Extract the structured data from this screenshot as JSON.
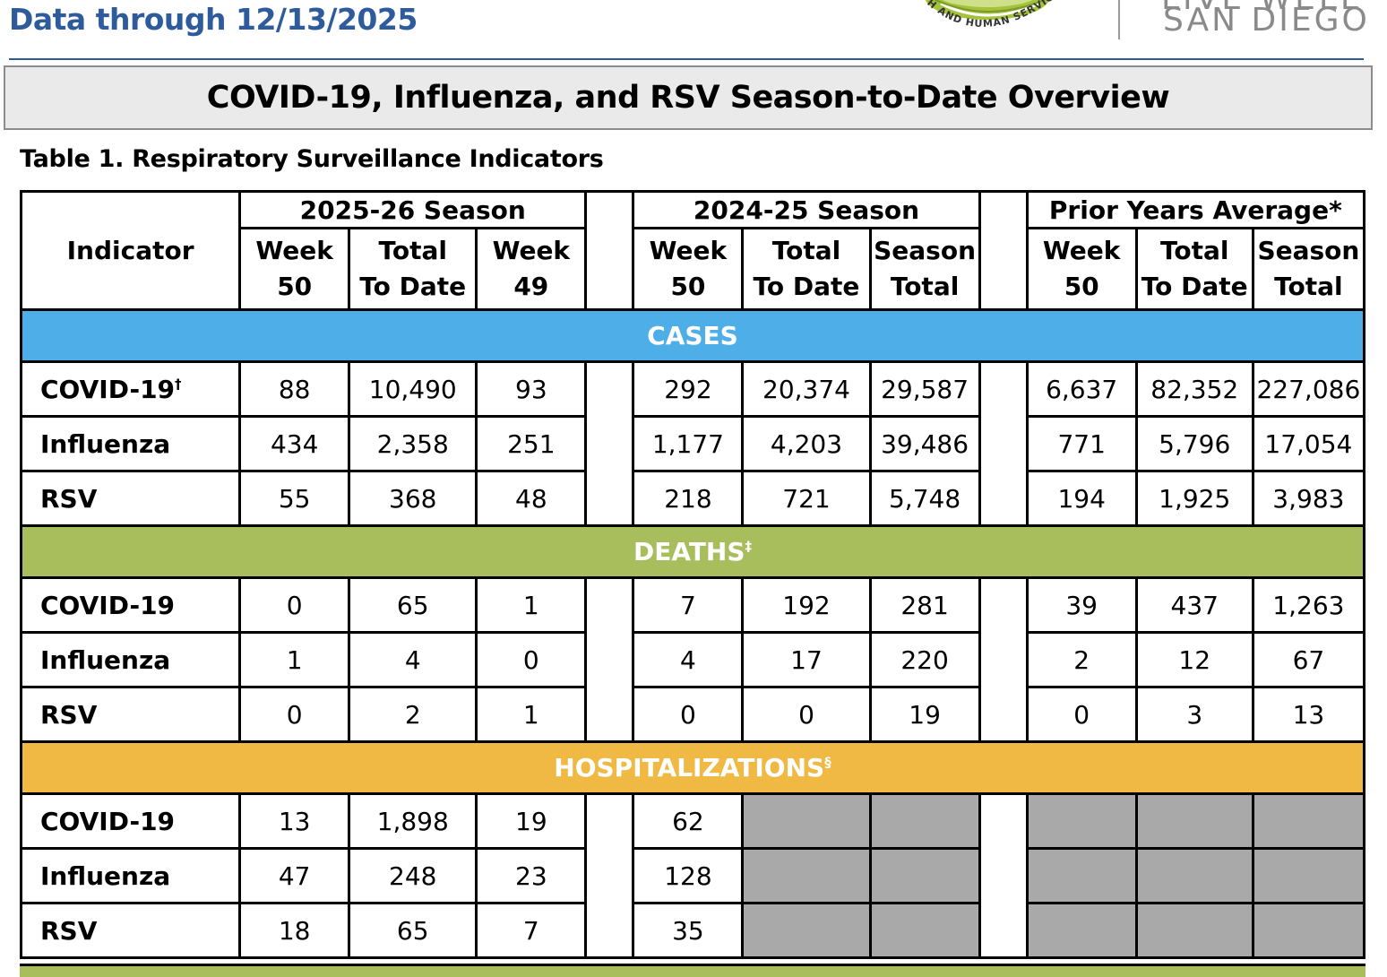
{
  "header": {
    "data_through": "Data through 12/13/2025",
    "hhsa_logo_text": "H AND HUMAN SERVICES A",
    "livewell_line1": "LIVE WELL",
    "livewell_line2": "SAN DIEGO"
  },
  "title": "COVID-19, Influenza, and RSV Season-to-Date Overview",
  "table_caption": "Table 1. Respiratory Surveillance Indicators",
  "table": {
    "indicator_header": "Indicator",
    "groups": {
      "current": "2025-26 Season",
      "previous": "2024-25 Season",
      "prior": "Prior Years Average*"
    },
    "subheaders": {
      "current": [
        "Week 50",
        "Total To Date",
        "Week 49"
      ],
      "previous": [
        "Week 50",
        "Total To Date",
        "Season Total"
      ],
      "prior": [
        "Week 50",
        "Total To Date",
        "Season Total"
      ]
    },
    "sections": {
      "cases": {
        "label": "CASES",
        "rows": [
          {
            "label": "COVID-19",
            "sup": "†",
            "current": [
              "88",
              "10,490",
              "93"
            ],
            "previous": [
              "292",
              "20,374",
              "29,587"
            ],
            "prior": [
              "6,637",
              "82,352",
              "227,086"
            ]
          },
          {
            "label": "Influenza",
            "sup": "",
            "current": [
              "434",
              "2,358",
              "251"
            ],
            "previous": [
              "1,177",
              "4,203",
              "39,486"
            ],
            "prior": [
              "771",
              "5,796",
              "17,054"
            ]
          },
          {
            "label": "RSV",
            "sup": "",
            "current": [
              "55",
              "368",
              "48"
            ],
            "previous": [
              "218",
              "721",
              "5,748"
            ],
            "prior": [
              "194",
              "1,925",
              "3,983"
            ]
          }
        ]
      },
      "deaths": {
        "label": "DEATHS",
        "sup": "‡",
        "rows": [
          {
            "label": "COVID-19",
            "current": [
              "0",
              "65",
              "1"
            ],
            "previous": [
              "7",
              "192",
              "281"
            ],
            "prior": [
              "39",
              "437",
              "1,263"
            ]
          },
          {
            "label": "Influenza",
            "current": [
              "1",
              "4",
              "0"
            ],
            "previous": [
              "4",
              "17",
              "220"
            ],
            "prior": [
              "2",
              "12",
              "67"
            ]
          },
          {
            "label": "RSV",
            "current": [
              "0",
              "2",
              "1"
            ],
            "previous": [
              "0",
              "0",
              "19"
            ],
            "prior": [
              "0",
              "3",
              "13"
            ]
          }
        ]
      },
      "hospitalizations": {
        "label": "HOSPITALIZATIONS",
        "sup": "§",
        "rows": [
          {
            "label": "COVID-19",
            "current": [
              "13",
              "1,898",
              "19"
            ],
            "previous": [
              "62"
            ]
          },
          {
            "label": "Influenza",
            "current": [
              "47",
              "248",
              "23"
            ],
            "previous": [
              "128"
            ]
          },
          {
            "label": "RSV",
            "current": [
              "18",
              "65",
              "7"
            ],
            "previous": [
              "35"
            ]
          }
        ]
      }
    }
  },
  "colors": {
    "header_blue": "#2e5b9c",
    "cases_band": "#4eaee8",
    "deaths_band": "#a8bd5b",
    "hosp_band": "#efb943",
    "suppressed_gray": "#a9a9a9"
  }
}
